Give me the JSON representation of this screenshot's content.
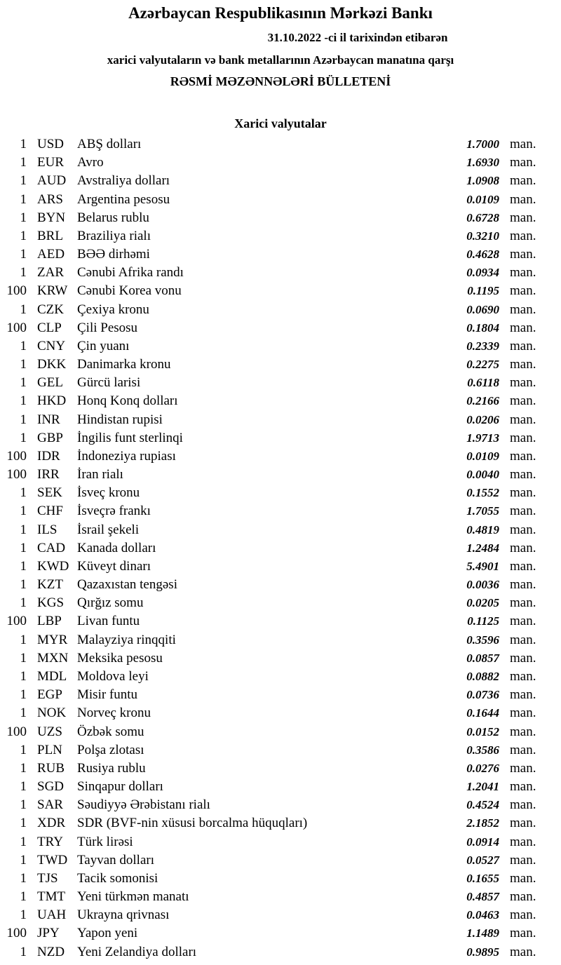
{
  "header": {
    "title": "Azərbaycan Respublikasının Mərkəzi Bankı",
    "date_line": "31.10.2022 -ci il tarixindən etibarən",
    "subtitle": "xarici valyutaların və bank metallarının Azərbaycan manatına qarşı",
    "bulletin": "RƏSMİ MƏZƏNNƏLƏRİ BÜLLETENİ",
    "section": "Xarici valyutalar"
  },
  "rates": [
    {
      "qty": "1",
      "code": "USD",
      "name": "ABŞ dolları",
      "value": "1.7000",
      "unit": "man."
    },
    {
      "qty": "1",
      "code": "EUR",
      "name": "Avro",
      "value": "1.6930",
      "unit": "man."
    },
    {
      "qty": "1",
      "code": "AUD",
      "name": "Avstraliya dolları",
      "value": "1.0908",
      "unit": "man."
    },
    {
      "qty": "1",
      "code": "ARS",
      "name": "Argentina pesosu",
      "value": "0.0109",
      "unit": "man."
    },
    {
      "qty": "1",
      "code": "BYN",
      "name": "Belarus rublu",
      "value": "0.6728",
      "unit": "man."
    },
    {
      "qty": "1",
      "code": "BRL",
      "name": "Braziliya rialı",
      "value": "0.3210",
      "unit": "man."
    },
    {
      "qty": "1",
      "code": "AED",
      "name": "BƏƏ dirhəmi",
      "value": "0.4628",
      "unit": "man."
    },
    {
      "qty": "1",
      "code": "ZAR",
      "name": "Cənubi Afrika randı",
      "value": "0.0934",
      "unit": "man."
    },
    {
      "qty": "100",
      "code": "KRW",
      "name": "Cənubi Korea vonu",
      "value": "0.1195",
      "unit": "man."
    },
    {
      "qty": "1",
      "code": "CZK",
      "name": "Çexiya kronu",
      "value": "0.0690",
      "unit": "man."
    },
    {
      "qty": "100",
      "code": "CLP",
      "name": "Çili Pesosu",
      "value": "0.1804",
      "unit": "man."
    },
    {
      "qty": "1",
      "code": "CNY",
      "name": "Çin yuanı",
      "value": "0.2339",
      "unit": "man."
    },
    {
      "qty": "1",
      "code": "DKK",
      "name": "Danimarka kronu",
      "value": "0.2275",
      "unit": "man."
    },
    {
      "qty": "1",
      "code": "GEL",
      "name": "Gürcü larisi",
      "value": "0.6118",
      "unit": "man."
    },
    {
      "qty": "1",
      "code": "HKD",
      "name": "Honq Konq dolları",
      "value": "0.2166",
      "unit": "man."
    },
    {
      "qty": "1",
      "code": "INR",
      "name": "Hindistan rupisi",
      "value": "0.0206",
      "unit": "man."
    },
    {
      "qty": "1",
      "code": "GBP",
      "name": "İngilis funt sterlinqi",
      "value": "1.9713",
      "unit": "man."
    },
    {
      "qty": "100",
      "code": "IDR",
      "name": "İndoneziya rupiası",
      "value": "0.0109",
      "unit": "man."
    },
    {
      "qty": "100",
      "code": "IRR",
      "name": "İran rialı",
      "value": "0.0040",
      "unit": "man."
    },
    {
      "qty": "1",
      "code": "SEK",
      "name": "İsveç kronu",
      "value": "0.1552",
      "unit": "man."
    },
    {
      "qty": "1",
      "code": "CHF",
      "name": "İsveçrə frankı",
      "value": "1.7055",
      "unit": "man."
    },
    {
      "qty": "1",
      "code": "ILS",
      "name": "İsrail şekeli",
      "value": "0.4819",
      "unit": "man."
    },
    {
      "qty": "1",
      "code": "CAD",
      "name": "Kanada dolları",
      "value": "1.2484",
      "unit": "man."
    },
    {
      "qty": "1",
      "code": "KWD",
      "name": "Küveyt dinarı",
      "value": "5.4901",
      "unit": "man."
    },
    {
      "qty": "1",
      "code": "KZT",
      "name": "Qazaxıstan tengəsi",
      "value": "0.0036",
      "unit": "man."
    },
    {
      "qty": "1",
      "code": "KGS",
      "name": "Qırğız somu",
      "value": "0.0205",
      "unit": "man."
    },
    {
      "qty": "100",
      "code": "LBP",
      "name": "Livan funtu",
      "value": "0.1125",
      "unit": "man."
    },
    {
      "qty": "1",
      "code": "MYR",
      "name": "Malayziya rinqqiti",
      "value": "0.3596",
      "unit": "man."
    },
    {
      "qty": "1",
      "code": "MXN",
      "name": "Meksika pesosu",
      "value": "0.0857",
      "unit": "man."
    },
    {
      "qty": "1",
      "code": "MDL",
      "name": "Moldova leyi",
      "value": "0.0882",
      "unit": "man."
    },
    {
      "qty": "1",
      "code": "EGP",
      "name": "Misir funtu",
      "value": "0.0736",
      "unit": "man."
    },
    {
      "qty": "1",
      "code": "NOK",
      "name": "Norveç kronu",
      "value": "0.1644",
      "unit": "man."
    },
    {
      "qty": "100",
      "code": "UZS",
      "name": "Özbək somu",
      "value": "0.0152",
      "unit": "man."
    },
    {
      "qty": "1",
      "code": "PLN",
      "name": "Polşa zlotası",
      "value": "0.3586",
      "unit": "man."
    },
    {
      "qty": "1",
      "code": "RUB",
      "name": "Rusiya rublu",
      "value": "0.0276",
      "unit": "man."
    },
    {
      "qty": "1",
      "code": "SGD",
      "name": "Sinqapur dolları",
      "value": "1.2041",
      "unit": "man."
    },
    {
      "qty": "1",
      "code": "SAR",
      "name": "Səudiyyə Ərəbistanı rialı",
      "value": "0.4524",
      "unit": "man."
    },
    {
      "qty": "1",
      "code": "XDR",
      "name": "SDR (BVF-nin xüsusi borcalma hüquqları)",
      "value": "2.1852",
      "unit": "man."
    },
    {
      "qty": "1",
      "code": "TRY",
      "name": "Türk lirəsi",
      "value": "0.0914",
      "unit": "man."
    },
    {
      "qty": "1",
      "code": "TWD",
      "name": "Tayvan dolları",
      "value": "0.0527",
      "unit": "man."
    },
    {
      "qty": "1",
      "code": "TJS",
      "name": "Tacik somonisi",
      "value": "0.1655",
      "unit": "man."
    },
    {
      "qty": "1",
      "code": "TMT",
      "name": "Yeni türkmən manatı",
      "value": "0.4857",
      "unit": "man."
    },
    {
      "qty": "1",
      "code": "UAH",
      "name": "Ukrayna qrivnası",
      "value": "0.0463",
      "unit": "man."
    },
    {
      "qty": "100",
      "code": "JPY",
      "name": "Yapon yeni",
      "value": "1.1489",
      "unit": "man."
    },
    {
      "qty": "1",
      "code": "NZD",
      "name": "Yeni Zelandiya dolları",
      "value": "0.9895",
      "unit": "man."
    }
  ]
}
